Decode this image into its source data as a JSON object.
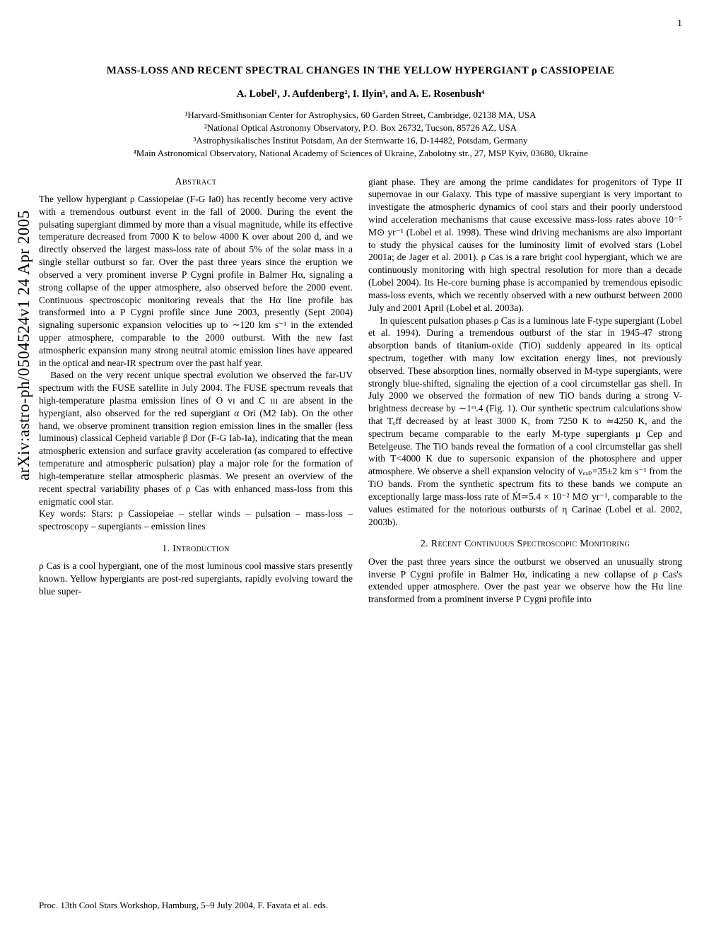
{
  "page_number": "1",
  "arxiv_stamp": "arXiv:astro-ph/0504524v1  24 Apr 2005",
  "title": "MASS-LOSS AND RECENT SPECTRAL CHANGES IN THE YELLOW HYPERGIANT ρ CASSIOPEIAE",
  "authors": "A. Lobel¹, J. Aufdenberg², I. Ilyin³, and A. E. Rosenbush⁴",
  "affiliations": {
    "a1": "¹Harvard-Smithsonian Center for Astrophysics, 60 Garden Street, Cambridge, 02138 MA, USA",
    "a2": "²National Optical Astronomy Observatory, P.O. Box 26732, Tucson, 85726 AZ, USA",
    "a3": "³Astrophysikalisches Institut Potsdam, An der Sternwarte 16, D-14482, Potsdam, Germany",
    "a4": "⁴Main Astronomical Observatory, National Academy of Sciences of Ukraine, Zabolotny str., 27, MSP Kyiv, 03680, Ukraine"
  },
  "abstract_heading": "Abstract",
  "abstract": {
    "p1": "The yellow hypergiant ρ Cassiopeiae (F-G Ia0) has recently become very active with a tremendous outburst event in the fall of 2000. During the event the pulsating supergiant dimmed by more than a visual magnitude, while its effective temperature decreased from 7000 K to below 4000 K over about 200 d, and we directly observed the largest mass-loss rate of about 5% of the solar mass in a single stellar outburst so far. Over the past three years since the eruption we observed a very prominent inverse P Cygni profile in Balmer Hα, signaling a strong collapse of the upper atmosphere, also observed before the 2000 event. Continuous spectroscopic monitoring reveals that the Hα line profile has transformed into a P Cygni profile since June 2003, presently (Sept 2004) signaling supersonic expansion velocities up to ∼120 km s⁻¹ in the extended upper atmosphere, comparable to the 2000 outburst. With the new fast atmospheric expansion many strong neutral atomic emission lines have appeared in the optical and near-IR spectrum over the past half year.",
    "p2": "Based on the very recent unique spectral evolution we observed the far-UV spectrum with the FUSE satellite in July 2004. The FUSE spectrum reveals that high-temperature plasma emission lines of O ᴠɪ and C ɪɪɪ are absent in the hypergiant, also observed for the red supergiant α Ori (M2 Iab). On the other hand, we observe prominent transition region emission lines in the smaller (less luminous) classical Cepheid variable β Dor (F-G Iab-Ia), indicating that the mean atmospheric extension and surface gravity acceleration (as compared to effective temperature and atmospheric pulsation) play a major role for the formation of high-temperature stellar atmospheric plasmas. We present an overview of the recent spectral variability phases of ρ Cas with enhanced mass-loss from this enigmatic cool star."
  },
  "keywords": "Key words: Stars: ρ Cassiopeiae – stellar winds – pulsation – mass-loss – spectroscopy – supergiants – emission lines",
  "section1_heading": "1. Introduction",
  "intro": {
    "p1": "ρ Cas is a cool hypergiant, one of the most luminous cool massive stars presently known. Yellow hypergiants are post-red supergiants, rapidly evolving toward the blue super-",
    "p1_cont": "giant phase. They are among the prime candidates for progenitors of Type II supernovae in our Galaxy. This type of massive supergiant is very important to investigate the atmospheric dynamics of cool stars and their poorly understood wind acceleration mechanisms that cause excessive mass-loss rates above 10⁻⁵ M⊙ yr⁻¹ (Lobel et al. 1998). These wind driving mechanisms are also important to study the physical causes for the luminosity limit of evolved stars (Lobel 2001a; de Jager et al. 2001). ρ Cas is a rare bright cool hypergiant, which we are continuously monitoring with high spectral resolution for more than a decade (Lobel 2004). Its He-core burning phase is accompanied by tremendous episodic mass-loss events, which we recently observed with a new outburst between 2000 July and 2001 April (Lobel et al. 2003a).",
    "p2": "In quiescent pulsation phases ρ Cas is a luminous late F-type supergiant (Lobel et al. 1994). During a tremendous outburst of the star in 1945-47 strong absorption bands of titanium-oxide (TiO) suddenly appeared in its optical spectrum, together with many low excitation energy lines, not previously observed. These absorption lines, normally observed in M-type supergiants, were strongly blue-shifted, signaling the ejection of a cool circumstellar gas shell. In July 2000 we observed the formation of new TiO bands during a strong V-brightness decrease by ∼1ᵐ.4 (Fig. 1). Our synthetic spectrum calculations show that Tₑff decreased by at least 3000 K, from 7250 K to ≃4250 K, and the spectrum became comparable to the early M-type supergiants μ Cep and Betelgeuse. The TiO bands reveal the formation of a cool circumstellar gas shell with T<4000 K due to supersonic expansion of the photosphere and upper atmosphere. We observe a shell expansion velocity of vₑₓₚ=35±2 km s⁻¹ from the TiO bands. From the synthetic spectrum fits to these bands we compute an exceptionally large mass-loss rate of Ṁ≃5.4 × 10⁻² M⊙ yr⁻¹, comparable to the values estimated for the notorious outbursts of η Carinae (Lobel et al. 2002, 2003b)."
  },
  "section2_heading": "2. Recent Continuous Spectroscopic Monitoring",
  "section2": {
    "p1": "Over the past three years since the outburst we observed an unusually strong inverse P Cygni profile in Balmer Hα, indicating a new collapse of ρ Cas's extended upper atmosphere. Over the past year we observe how the Hα line transformed from a prominent inverse P Cygni profile into"
  },
  "footer": "Proc. 13th Cool Stars Workshop, Hamburg, 5–9 July 2004, F. Favata et al. eds."
}
